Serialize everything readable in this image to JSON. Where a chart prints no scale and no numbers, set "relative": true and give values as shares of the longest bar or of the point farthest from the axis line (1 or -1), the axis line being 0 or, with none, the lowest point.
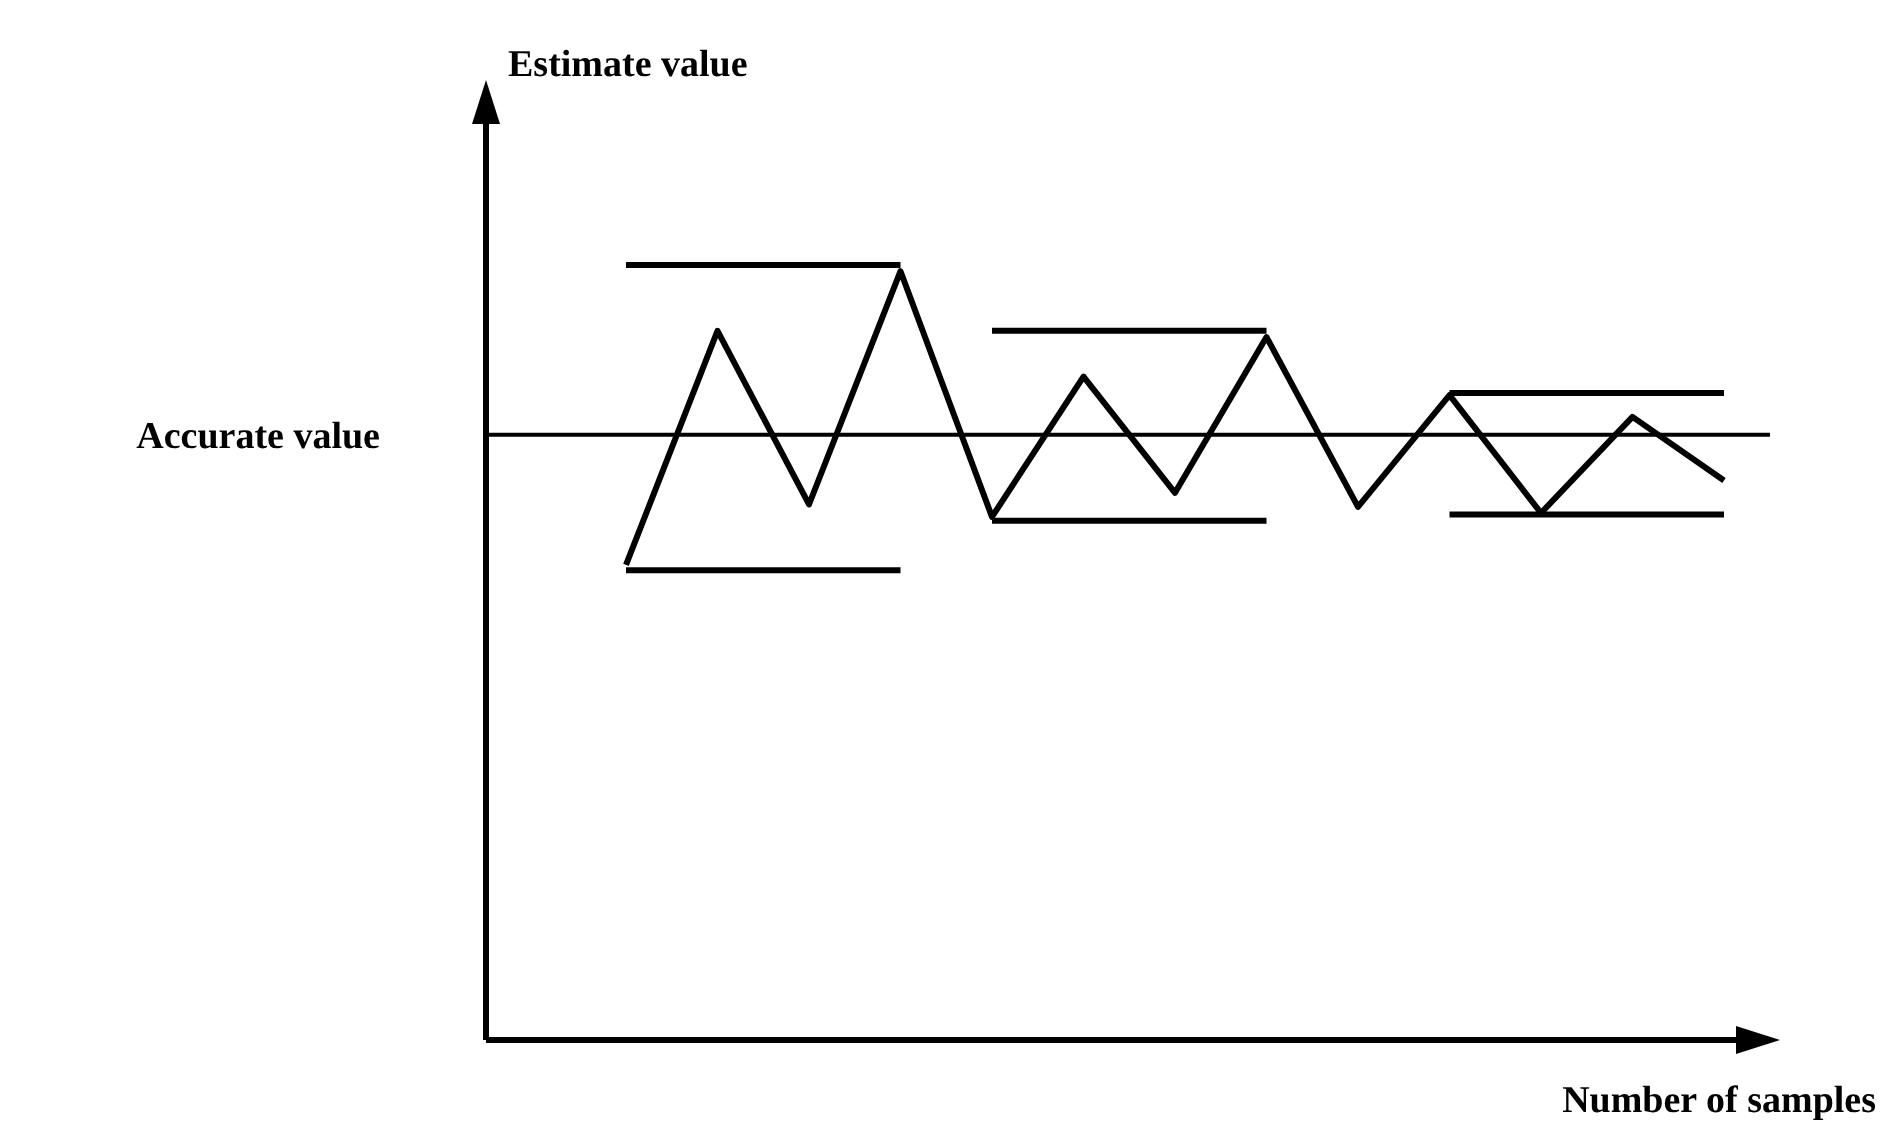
{
  "chart_data": {
    "type": "line",
    "relative": true,
    "xlabel": "Number of samples",
    "ylabel": "Estimate value",
    "categories": [
      null,
      null,
      null,
      null,
      null,
      null,
      null,
      null,
      null,
      null,
      null,
      null,
      null
    ],
    "grid": false,
    "marker": "none",
    "line_style": "solid",
    "ref_lines": [
      {
        "axis": "y",
        "value": 0.781,
        "label": "Accurate value",
        "color": "#000000"
      }
    ],
    "series": [
      {
        "color": "#000000",
        "values": [
          0.613,
          0.915,
          0.691,
          0.992,
          0.675,
          0.856,
          0.706,
          0.907,
          0.688,
          0.832,
          0.68,
          0.804,
          0.722
        ]
      },
      {
        "color": "#000000",
        "values": [
          1,
          1,
          1,
          1,
          null,
          null,
          null,
          null,
          null,
          null,
          null,
          null,
          null
        ]
      },
      {
        "color": "#000000",
        "values": [
          0.606,
          0.606,
          0.606,
          0.606,
          null,
          null,
          null,
          null,
          null,
          null,
          null,
          null,
          null
        ]
      },
      {
        "color": "#000000",
        "values": [
          null,
          null,
          null,
          null,
          0.915,
          0.915,
          0.915,
          0.915,
          null,
          null,
          null,
          null,
          null
        ]
      },
      {
        "color": "#000000",
        "values": [
          null,
          null,
          null,
          null,
          0.67,
          0.67,
          0.67,
          0.67,
          null,
          null,
          null,
          null,
          null
        ]
      },
      {
        "color": "#000000",
        "values": [
          null,
          null,
          null,
          null,
          null,
          null,
          null,
          null,
          null,
          0.835,
          0.835,
          0.835,
          0.835
        ]
      },
      {
        "color": "#000000",
        "values": [
          null,
          null,
          null,
          null,
          null,
          null,
          null,
          null,
          null,
          0.678,
          0.678,
          0.678,
          0.678
        ]
      }
    ]
  }
}
